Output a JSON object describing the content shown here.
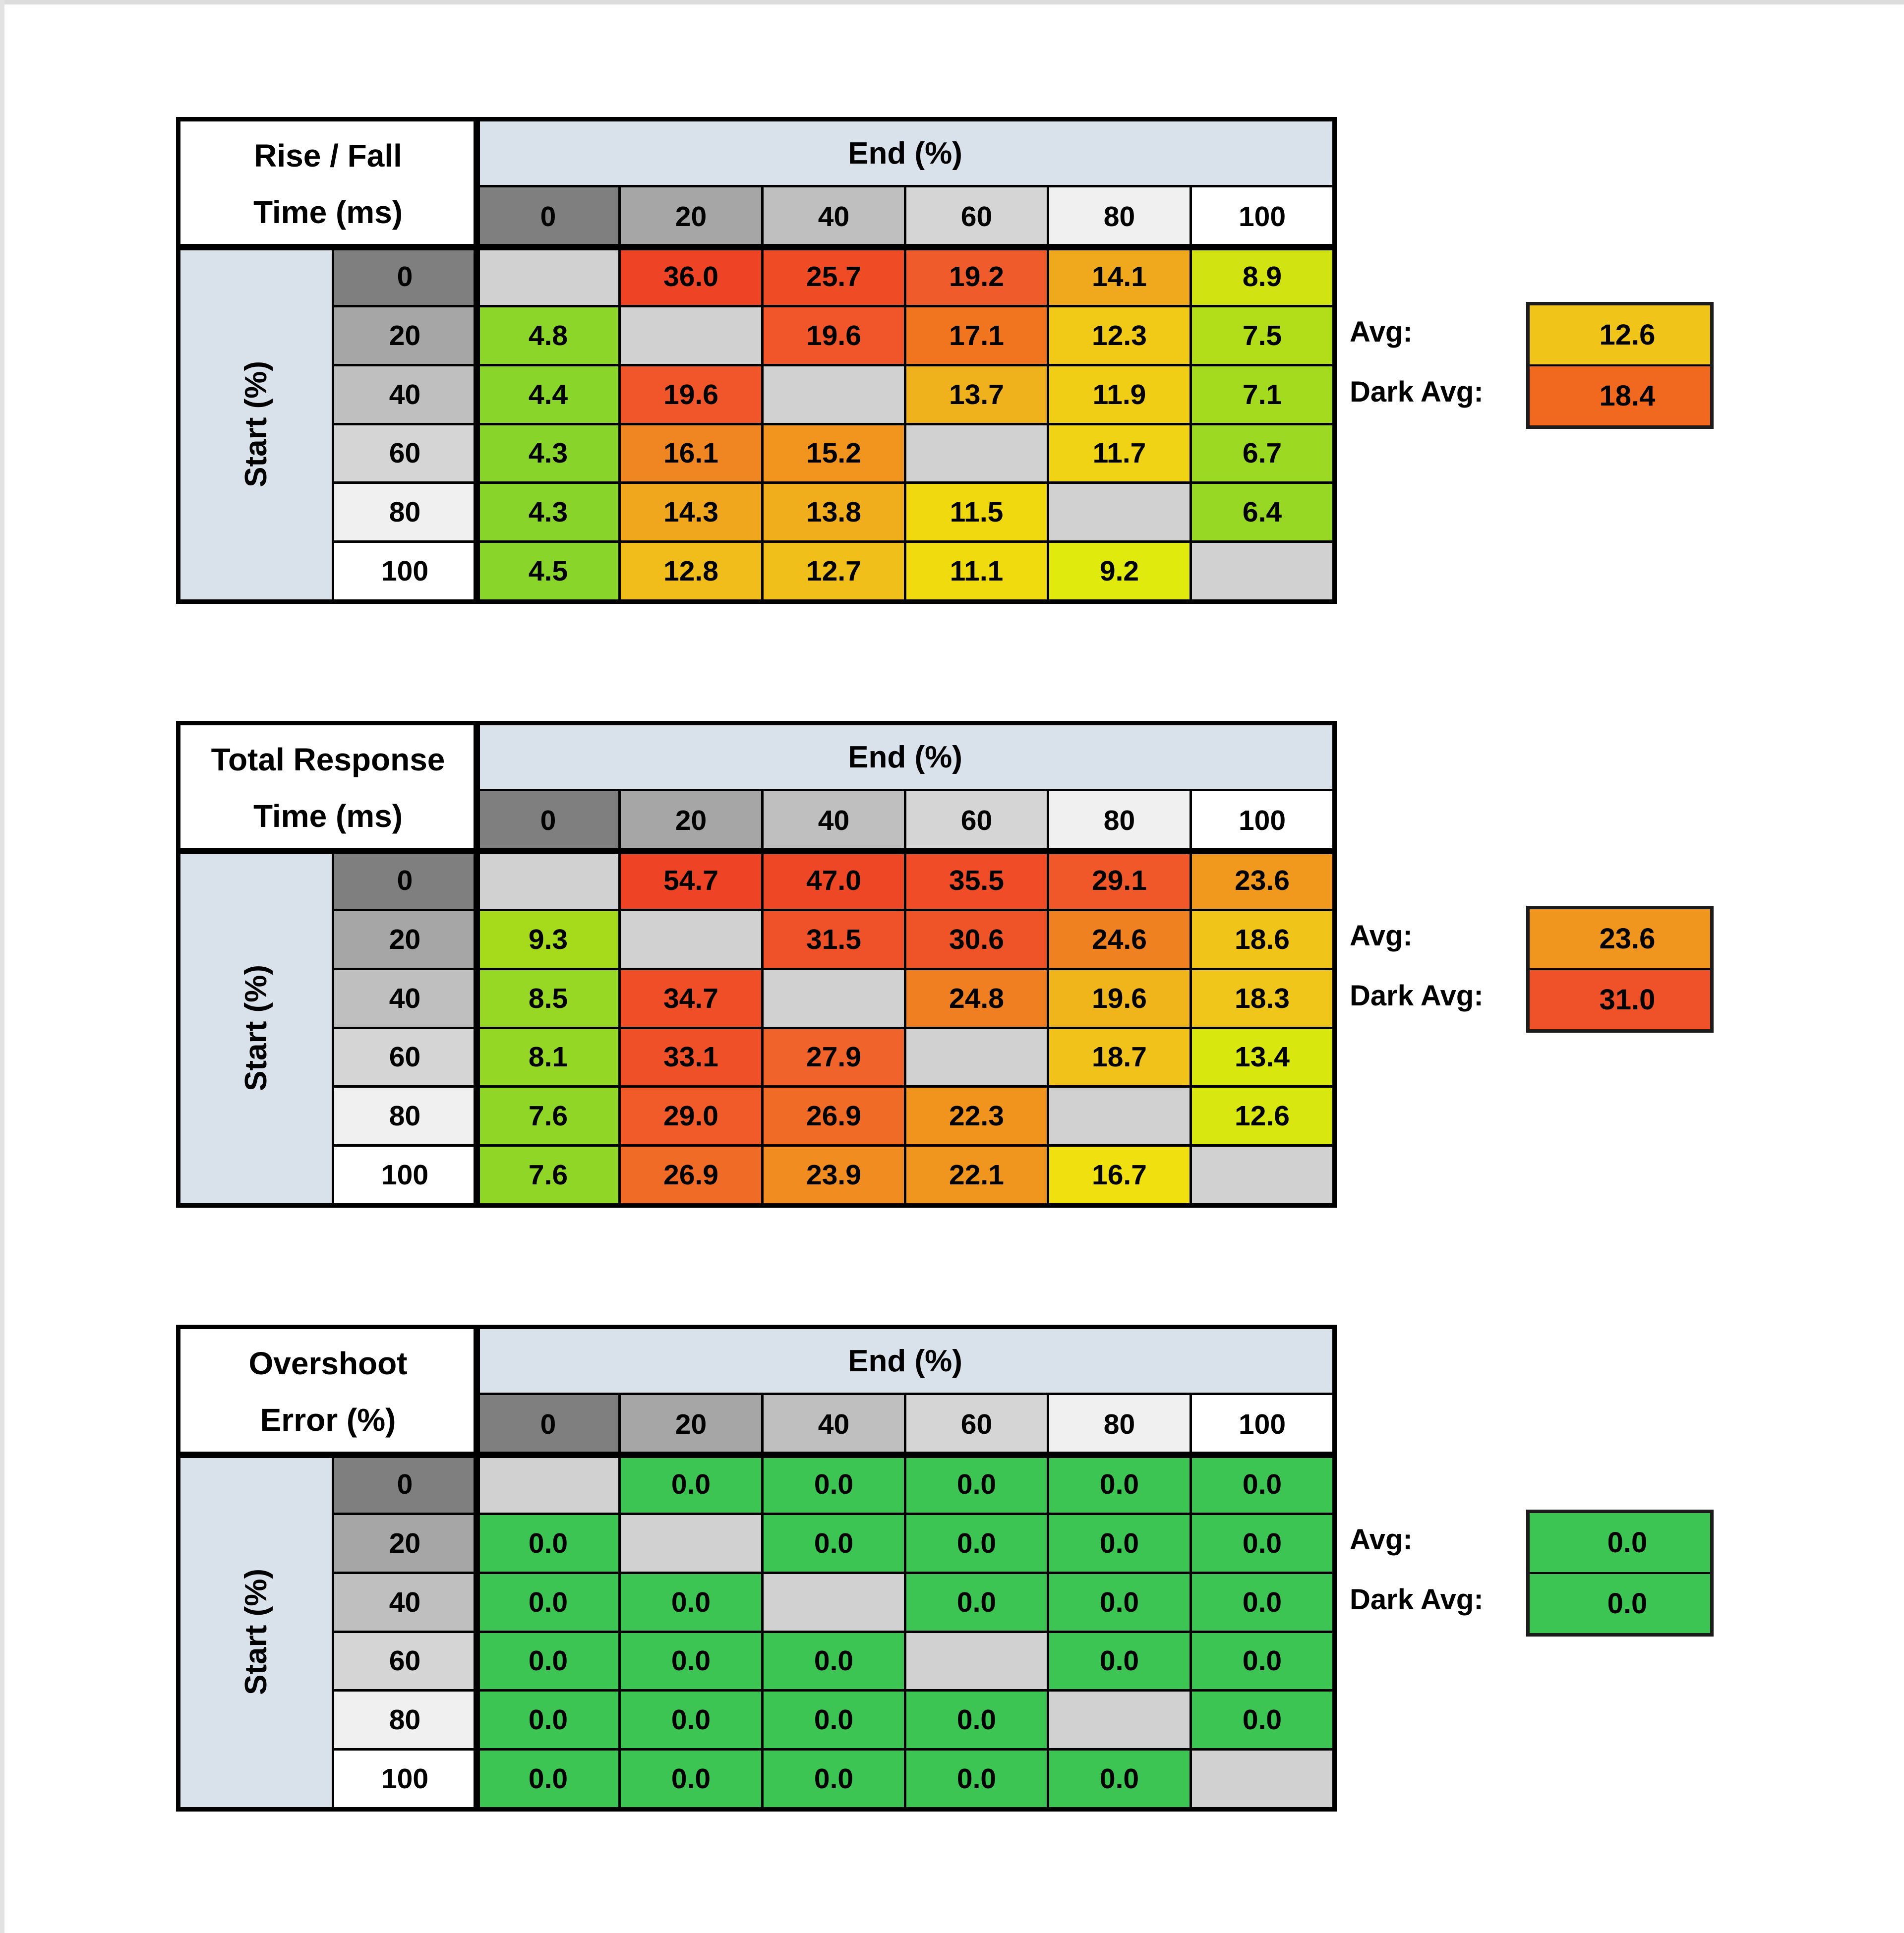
{
  "style": {
    "page_background": "#FFFFFF",
    "edge_color": "#DCDCDC",
    "grid_line_color": "#000000",
    "title_cell_background": "#FFFFFF",
    "axis_header_background": "#D9E1EA",
    "blank_cell": "#D1D1D1",
    "header_grays": [
      "#7F7F7F",
      "#A6A6A6",
      "#BFBFBF",
      "#D5D5D5",
      "#F0F0F0",
      "#FFFFFF"
    ],
    "text_color": "#000000",
    "avg_box_border": "#1C1C1C"
  },
  "chart_data": [
    {
      "type": "heatmap",
      "title": "Rise / Fall Time (ms)",
      "title_lines": [
        "Rise / Fall",
        "Time (ms)"
      ],
      "col_axis_label": "End (%)",
      "row_axis_label": "Start (%)",
      "columns": [
        "0",
        "20",
        "40",
        "60",
        "80",
        "100"
      ],
      "rows": [
        "0",
        "20",
        "40",
        "60",
        "80",
        "100"
      ],
      "values": [
        [
          null,
          36.0,
          25.7,
          19.2,
          14.1,
          8.9
        ],
        [
          4.8,
          null,
          19.6,
          17.1,
          12.3,
          7.5
        ],
        [
          4.4,
          19.6,
          null,
          13.7,
          11.9,
          7.1
        ],
        [
          4.3,
          16.1,
          15.2,
          null,
          11.7,
          6.7
        ],
        [
          4.3,
          14.3,
          13.8,
          11.5,
          null,
          6.4
        ],
        [
          4.5,
          12.8,
          12.7,
          11.1,
          9.2,
          null
        ]
      ],
      "cell_colors": [
        [
          null,
          "#EE4325",
          "#EF4C26",
          "#F05B2B",
          "#F0A81C",
          "#D2E312"
        ],
        [
          "#8CD529",
          null,
          "#F0562A",
          "#F1741F",
          "#F0CA17",
          "#B1DE19"
        ],
        [
          "#89D52A",
          "#F0562A",
          null,
          "#F0B21C",
          "#F0CE16",
          "#A4DB1E"
        ],
        [
          "#88D42B",
          "#F08621",
          "#F2951E",
          null,
          "#F0D314",
          "#9CD922"
        ],
        [
          "#88D42B",
          "#F0A61D",
          "#F0AD1C",
          "#F0D90F",
          null,
          "#97D824"
        ],
        [
          "#8AD52A",
          "#F0BD1A",
          "#F0BF19",
          "#F0DC0E",
          "#E0EA0C",
          null
        ]
      ],
      "avg_label": "Avg:",
      "avg_value": 12.6,
      "avg_color": "#F0C419",
      "dark_avg_label": "Dark Avg:",
      "dark_avg_value": 18.4,
      "dark_avg_color": "#F1691F"
    },
    {
      "type": "heatmap",
      "title": "Total Response Time (ms)",
      "title_lines": [
        "Total Response",
        "Time (ms)"
      ],
      "col_axis_label": "End (%)",
      "row_axis_label": "Start (%)",
      "columns": [
        "0",
        "20",
        "40",
        "60",
        "80",
        "100"
      ],
      "rows": [
        "0",
        "20",
        "40",
        "60",
        "80",
        "100"
      ],
      "values": [
        [
          null,
          54.7,
          47.0,
          35.5,
          29.1,
          23.6
        ],
        [
          9.3,
          null,
          31.5,
          30.6,
          24.6,
          18.6
        ],
        [
          8.5,
          34.7,
          null,
          24.8,
          19.6,
          18.3
        ],
        [
          8.1,
          33.1,
          27.9,
          null,
          18.7,
          13.4
        ],
        [
          7.6,
          29.0,
          26.9,
          22.3,
          null,
          12.6
        ],
        [
          7.6,
          26.9,
          23.9,
          22.1,
          16.7,
          null
        ]
      ],
      "cell_colors": [
        [
          null,
          "#EE4425",
          "#EE4726",
          "#EF4C27",
          "#F0582A",
          "#F1991D"
        ],
        [
          "#A6DB1B",
          null,
          "#EF5128",
          "#EF5428",
          "#F08120",
          "#F0C419"
        ],
        [
          "#97D824",
          "#EF4E27",
          null,
          "#F07F21",
          "#F0B51B",
          "#F0C61A"
        ],
        [
          "#94D725",
          "#EF5027",
          "#F0632A",
          null,
          "#F0C21A",
          "#D8E70D"
        ],
        [
          "#8FD627",
          "#F05B29",
          "#F06B26",
          "#F0941E",
          null,
          "#D8E70F"
        ],
        [
          "#8FD627",
          "#F06B26",
          "#F08C20",
          "#F0961E",
          "#F0E00F",
          null
        ]
      ],
      "avg_label": "Avg:",
      "avg_value": 23.6,
      "avg_color": "#F0951E",
      "dark_avg_label": "Dark Avg:",
      "dark_avg_value": 31.0,
      "dark_avg_color": "#EF5128"
    },
    {
      "type": "heatmap",
      "title": "Overshoot Error (%)",
      "title_lines": [
        "Overshoot",
        "Error (%)"
      ],
      "col_axis_label": "End (%)",
      "row_axis_label": "Start (%)",
      "columns": [
        "0",
        "20",
        "40",
        "60",
        "80",
        "100"
      ],
      "rows": [
        "0",
        "20",
        "40",
        "60",
        "80",
        "100"
      ],
      "values": [
        [
          null,
          0.0,
          0.0,
          0.0,
          0.0,
          0.0
        ],
        [
          0.0,
          null,
          0.0,
          0.0,
          0.0,
          0.0
        ],
        [
          0.0,
          0.0,
          null,
          0.0,
          0.0,
          0.0
        ],
        [
          0.0,
          0.0,
          0.0,
          null,
          0.0,
          0.0
        ],
        [
          0.0,
          0.0,
          0.0,
          0.0,
          null,
          0.0
        ],
        [
          0.0,
          0.0,
          0.0,
          0.0,
          0.0,
          null
        ]
      ],
      "cell_colors": [
        [
          null,
          "#3CC553",
          "#3CC553",
          "#3CC553",
          "#3CC553",
          "#3CC553"
        ],
        [
          "#3CC553",
          null,
          "#3CC553",
          "#3CC553",
          "#3CC553",
          "#3CC553"
        ],
        [
          "#3CC553",
          "#3CC553",
          null,
          "#3CC553",
          "#3CC553",
          "#3CC553"
        ],
        [
          "#3CC553",
          "#3CC553",
          "#3CC553",
          null,
          "#3CC553",
          "#3CC553"
        ],
        [
          "#3CC553",
          "#3CC553",
          "#3CC553",
          "#3CC553",
          null,
          "#3CC553"
        ],
        [
          "#3CC553",
          "#3CC553",
          "#3CC553",
          "#3CC553",
          "#3CC553",
          null
        ]
      ],
      "avg_label": "Avg:",
      "avg_value": 0.0,
      "avg_color": "#3CC553",
      "dark_avg_label": "Dark Avg:",
      "dark_avg_value": 0.0,
      "dark_avg_color": "#3CC553"
    }
  ]
}
